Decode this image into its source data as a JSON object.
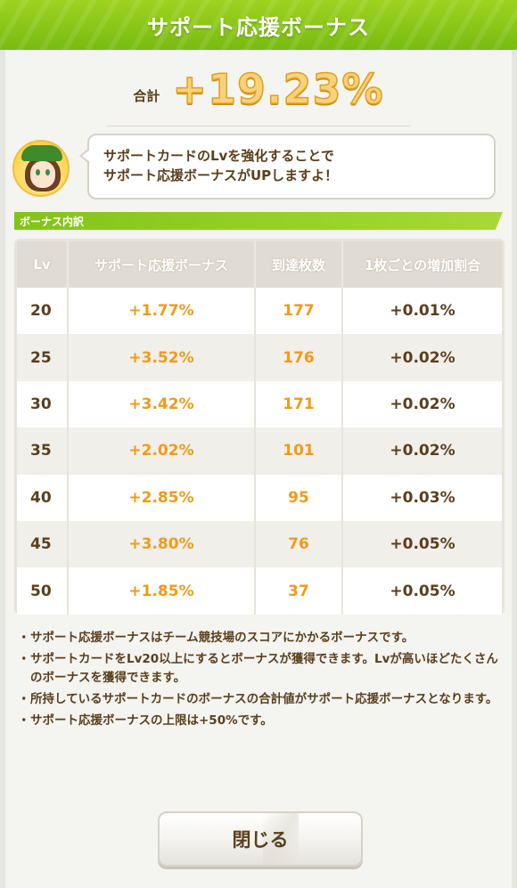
{
  "header": {
    "title": "サポート応援ボーナス"
  },
  "total": {
    "label": "合計",
    "value": "+19.23%"
  },
  "speech": {
    "line1": "サポートカードのLvを強化することで",
    "line2": "サポート応援ボーナスがUPしますよ！"
  },
  "section": {
    "title": "ボーナス内訳"
  },
  "table": {
    "headers": [
      "Lv",
      "サポート応援ボーナス",
      "到達枚数",
      "1枚ごとの増加割合"
    ],
    "rows": [
      [
        "20",
        "+1.77%",
        "177",
        "+0.01%"
      ],
      [
        "25",
        "+3.52%",
        "176",
        "+0.02%"
      ],
      [
        "30",
        "+3.42%",
        "171",
        "+0.02%"
      ],
      [
        "35",
        "+2.02%",
        "101",
        "+0.02%"
      ],
      [
        "40",
        "+2.85%",
        "95",
        "+0.03%"
      ],
      [
        "45",
        "+3.80%",
        "76",
        "+0.05%"
      ],
      [
        "50",
        "+1.85%",
        "37",
        "+0.05%"
      ]
    ]
  },
  "notes": {
    "bullet": "・",
    "items": [
      "サポート応援ボーナスはチーム競技場のスコアにかかるボーナスです。",
      "サポートカードをLv20以上にするとボーナスが獲得できます。Lvが高いほどたくさんのボーナスを獲得できます。",
      "所持しているサポートカードのボーナスの合計値がサポート応援ボーナスとなります。",
      "サポート応援ボーナスの上限は+50%です。"
    ]
  },
  "buttons": {
    "close": "閉じる"
  },
  "colors": {
    "header_green": "#8cc91a",
    "accent_orange": "#f19a1a",
    "text_brown": "#5a3f1d"
  }
}
